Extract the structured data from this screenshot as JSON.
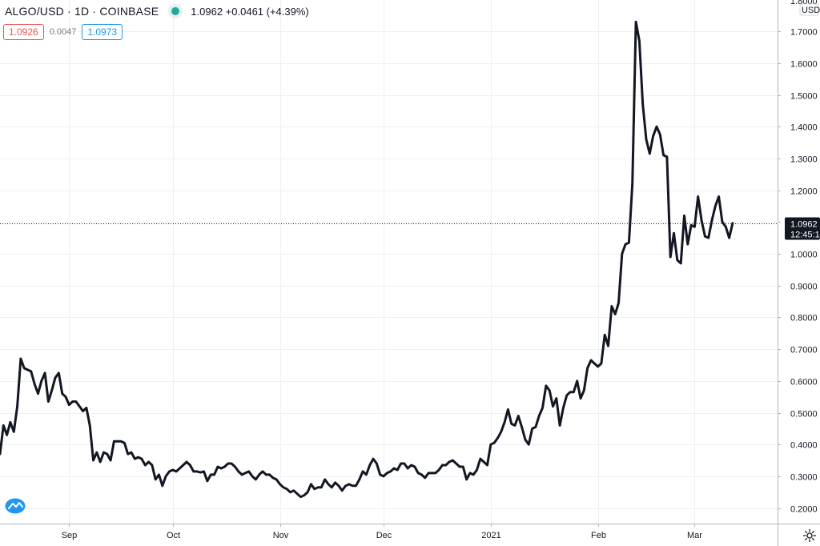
{
  "header": {
    "symbol": "ALGO/USD · 1D · COINBASE",
    "quote": "1.0962 +0.0461 (+4.39%)",
    "status_color": "#26a69a"
  },
  "quote_boxes": {
    "bid": "1.0926",
    "spread": "0.0047",
    "ask": "1.0973"
  },
  "price_axis": {
    "unit_label": "USD",
    "top_partial_label": "1.8000",
    "last_price_label": "1.0962",
    "countdown_label": "12:45:1"
  },
  "icons": {
    "logo": "tradingview-logo-icon",
    "settings": "gear-icon"
  },
  "chart_data": {
    "type": "line",
    "title": "ALGO/USD",
    "xlabel": "",
    "ylabel": "",
    "ylim": [
      0.15,
      1.8
    ],
    "yticks": [
      0.2,
      0.3,
      0.4,
      0.5,
      0.6,
      0.7,
      0.8,
      0.9,
      1.0,
      1.1,
      1.2,
      1.3,
      1.4,
      1.5,
      1.6,
      1.7
    ],
    "ytick_labels": [
      "0.2000",
      "0.3000",
      "0.4000",
      "0.5000",
      "0.6000",
      "0.7000",
      "0.8000",
      "0.9000",
      "1.0000",
      "1.1000",
      "1.2000",
      "1.3000",
      "1.4000",
      "1.5000",
      "1.6000",
      "1.7000"
    ],
    "xticks": [
      {
        "label": "Sep",
        "date": "2020-09-01"
      },
      {
        "label": "Oct",
        "date": "2020-10-01"
      },
      {
        "label": "Nov",
        "date": "2020-11-01"
      },
      {
        "label": "Dec",
        "date": "2020-12-01"
      },
      {
        "label": "2021",
        "date": "2021-01-01"
      },
      {
        "label": "Feb",
        "date": "2021-02-01"
      },
      {
        "label": "Mar",
        "date": "2021-03-01"
      }
    ],
    "x_start": "2020-08-12",
    "x_end": "2021-03-25",
    "last_price": 1.0962,
    "grid": true,
    "line_color": "#131722",
    "series": [
      {
        "values": [
          [
            "2020-08-12",
            0.37
          ],
          [
            "2020-08-13",
            0.46
          ],
          [
            "2020-08-14",
            0.43
          ],
          [
            "2020-08-15",
            0.47
          ],
          [
            "2020-08-16",
            0.44
          ],
          [
            "2020-08-17",
            0.52
          ],
          [
            "2020-08-18",
            0.67
          ],
          [
            "2020-08-19",
            0.64
          ],
          [
            "2020-08-20",
            0.635
          ],
          [
            "2020-08-21",
            0.63
          ],
          [
            "2020-08-22",
            0.59
          ],
          [
            "2020-08-23",
            0.56
          ],
          [
            "2020-08-24",
            0.6
          ],
          [
            "2020-08-25",
            0.625
          ],
          [
            "2020-08-26",
            0.535
          ],
          [
            "2020-08-27",
            0.57
          ],
          [
            "2020-08-28",
            0.61
          ],
          [
            "2020-08-29",
            0.625
          ],
          [
            "2020-08-30",
            0.56
          ],
          [
            "2020-08-31",
            0.55
          ],
          [
            "2020-09-01",
            0.525
          ],
          [
            "2020-09-02",
            0.535
          ],
          [
            "2020-09-03",
            0.535
          ],
          [
            "2020-09-04",
            0.52
          ],
          [
            "2020-09-05",
            0.505
          ],
          [
            "2020-09-06",
            0.515
          ],
          [
            "2020-09-07",
            0.46
          ],
          [
            "2020-09-08",
            0.35
          ],
          [
            "2020-09-09",
            0.375
          ],
          [
            "2020-09-10",
            0.345
          ],
          [
            "2020-09-11",
            0.375
          ],
          [
            "2020-09-12",
            0.37
          ],
          [
            "2020-09-13",
            0.35
          ],
          [
            "2020-09-14",
            0.41
          ],
          [
            "2020-09-15",
            0.41
          ],
          [
            "2020-09-16",
            0.41
          ],
          [
            "2020-09-17",
            0.405
          ],
          [
            "2020-09-18",
            0.37
          ],
          [
            "2020-09-19",
            0.375
          ],
          [
            "2020-09-20",
            0.355
          ],
          [
            "2020-09-21",
            0.36
          ],
          [
            "2020-09-22",
            0.355
          ],
          [
            "2020-09-23",
            0.335
          ],
          [
            "2020-09-24",
            0.345
          ],
          [
            "2020-09-25",
            0.335
          ],
          [
            "2020-09-26",
            0.29
          ],
          [
            "2020-09-27",
            0.305
          ],
          [
            "2020-09-28",
            0.27
          ],
          [
            "2020-09-29",
            0.3
          ],
          [
            "2020-09-30",
            0.315
          ],
          [
            "2020-10-01",
            0.32
          ],
          [
            "2020-10-02",
            0.315
          ],
          [
            "2020-10-03",
            0.325
          ],
          [
            "2020-10-04",
            0.335
          ],
          [
            "2020-10-05",
            0.345
          ],
          [
            "2020-10-06",
            0.335
          ],
          [
            "2020-10-07",
            0.315
          ],
          [
            "2020-10-08",
            0.315
          ],
          [
            "2020-10-09",
            0.312
          ],
          [
            "2020-10-10",
            0.315
          ],
          [
            "2020-10-11",
            0.285
          ],
          [
            "2020-10-12",
            0.305
          ],
          [
            "2020-10-13",
            0.305
          ],
          [
            "2020-10-14",
            0.33
          ],
          [
            "2020-10-15",
            0.325
          ],
          [
            "2020-10-16",
            0.33
          ],
          [
            "2020-10-17",
            0.34
          ],
          [
            "2020-10-18",
            0.34
          ],
          [
            "2020-10-19",
            0.33
          ],
          [
            "2020-10-20",
            0.315
          ],
          [
            "2020-10-21",
            0.305
          ],
          [
            "2020-10-22",
            0.31
          ],
          [
            "2020-10-23",
            0.315
          ],
          [
            "2020-10-24",
            0.3
          ],
          [
            "2020-10-25",
            0.29
          ],
          [
            "2020-10-26",
            0.305
          ],
          [
            "2020-10-27",
            0.315
          ],
          [
            "2020-10-28",
            0.305
          ],
          [
            "2020-10-29",
            0.305
          ],
          [
            "2020-10-30",
            0.295
          ],
          [
            "2020-10-31",
            0.29
          ],
          [
            "2020-11-01",
            0.275
          ],
          [
            "2020-11-02",
            0.265
          ],
          [
            "2020-11-03",
            0.26
          ],
          [
            "2020-11-04",
            0.25
          ],
          [
            "2020-11-05",
            0.255
          ],
          [
            "2020-11-06",
            0.245
          ],
          [
            "2020-11-07",
            0.235
          ],
          [
            "2020-11-08",
            0.24
          ],
          [
            "2020-11-09",
            0.25
          ],
          [
            "2020-11-10",
            0.275
          ],
          [
            "2020-11-11",
            0.26
          ],
          [
            "2020-11-12",
            0.265
          ],
          [
            "2020-11-13",
            0.265
          ],
          [
            "2020-11-14",
            0.29
          ],
          [
            "2020-11-15",
            0.275
          ],
          [
            "2020-11-16",
            0.265
          ],
          [
            "2020-11-17",
            0.28
          ],
          [
            "2020-11-18",
            0.27
          ],
          [
            "2020-11-19",
            0.255
          ],
          [
            "2020-11-20",
            0.27
          ],
          [
            "2020-11-21",
            0.275
          ],
          [
            "2020-11-22",
            0.27
          ],
          [
            "2020-11-23",
            0.27
          ],
          [
            "2020-11-24",
            0.29
          ],
          [
            "2020-11-25",
            0.315
          ],
          [
            "2020-11-26",
            0.305
          ],
          [
            "2020-11-27",
            0.335
          ],
          [
            "2020-11-28",
            0.355
          ],
          [
            "2020-11-29",
            0.34
          ],
          [
            "2020-11-30",
            0.305
          ],
          [
            "2020-12-01",
            0.3
          ],
          [
            "2020-12-02",
            0.31
          ],
          [
            "2020-12-03",
            0.315
          ],
          [
            "2020-12-04",
            0.325
          ],
          [
            "2020-12-05",
            0.32
          ],
          [
            "2020-12-06",
            0.34
          ],
          [
            "2020-12-07",
            0.34
          ],
          [
            "2020-12-08",
            0.325
          ],
          [
            "2020-12-09",
            0.335
          ],
          [
            "2020-12-10",
            0.33
          ],
          [
            "2020-12-11",
            0.31
          ],
          [
            "2020-12-12",
            0.305
          ],
          [
            "2020-12-13",
            0.295
          ],
          [
            "2020-12-14",
            0.31
          ],
          [
            "2020-12-15",
            0.31
          ],
          [
            "2020-12-16",
            0.31
          ],
          [
            "2020-12-17",
            0.32
          ],
          [
            "2020-12-18",
            0.335
          ],
          [
            "2020-12-19",
            0.335
          ],
          [
            "2020-12-20",
            0.345
          ],
          [
            "2020-12-21",
            0.35
          ],
          [
            "2020-12-22",
            0.34
          ],
          [
            "2020-12-23",
            0.33
          ],
          [
            "2020-12-24",
            0.33
          ],
          [
            "2020-12-25",
            0.29
          ],
          [
            "2020-12-26",
            0.31
          ],
          [
            "2020-12-27",
            0.305
          ],
          [
            "2020-12-28",
            0.32
          ],
          [
            "2020-12-29",
            0.355
          ],
          [
            "2020-12-30",
            0.345
          ],
          [
            "2020-12-31",
            0.335
          ],
          [
            "2021-01-01",
            0.4
          ],
          [
            "2021-01-02",
            0.405
          ],
          [
            "2021-01-03",
            0.42
          ],
          [
            "2021-01-04",
            0.44
          ],
          [
            "2021-01-05",
            0.47
          ],
          [
            "2021-01-06",
            0.51
          ],
          [
            "2021-01-07",
            0.465
          ],
          [
            "2021-01-08",
            0.46
          ],
          [
            "2021-01-09",
            0.49
          ],
          [
            "2021-01-10",
            0.455
          ],
          [
            "2021-01-11",
            0.415
          ],
          [
            "2021-01-12",
            0.4
          ],
          [
            "2021-01-13",
            0.45
          ],
          [
            "2021-01-14",
            0.455
          ],
          [
            "2021-01-15",
            0.49
          ],
          [
            "2021-01-16",
            0.515
          ],
          [
            "2021-01-17",
            0.585
          ],
          [
            "2021-01-18",
            0.57
          ],
          [
            "2021-01-19",
            0.52
          ],
          [
            "2021-01-20",
            0.545
          ],
          [
            "2021-01-21",
            0.46
          ],
          [
            "2021-01-22",
            0.515
          ],
          [
            "2021-01-23",
            0.555
          ],
          [
            "2021-01-24",
            0.565
          ],
          [
            "2021-01-25",
            0.565
          ],
          [
            "2021-01-26",
            0.6
          ],
          [
            "2021-01-27",
            0.545
          ],
          [
            "2021-01-28",
            0.57
          ],
          [
            "2021-01-29",
            0.64
          ],
          [
            "2021-01-30",
            0.665
          ],
          [
            "2021-01-31",
            0.655
          ],
          [
            "2021-02-01",
            0.645
          ],
          [
            "2021-02-02",
            0.655
          ],
          [
            "2021-02-03",
            0.745
          ],
          [
            "2021-02-04",
            0.71
          ],
          [
            "2021-02-05",
            0.835
          ],
          [
            "2021-02-06",
            0.81
          ],
          [
            "2021-02-07",
            0.845
          ],
          [
            "2021-02-08",
            1.0
          ],
          [
            "2021-02-09",
            1.03
          ],
          [
            "2021-02-10",
            1.035
          ],
          [
            "2021-02-11",
            1.22
          ],
          [
            "2021-02-12",
            1.73
          ],
          [
            "2021-02-13",
            1.67
          ],
          [
            "2021-02-14",
            1.47
          ],
          [
            "2021-02-15",
            1.36
          ],
          [
            "2021-02-16",
            1.315
          ],
          [
            "2021-02-17",
            1.37
          ],
          [
            "2021-02-18",
            1.4
          ],
          [
            "2021-02-19",
            1.375
          ],
          [
            "2021-02-20",
            1.31
          ],
          [
            "2021-02-21",
            1.305
          ],
          [
            "2021-02-22",
            0.99
          ],
          [
            "2021-02-23",
            1.065
          ],
          [
            "2021-02-24",
            0.98
          ],
          [
            "2021-02-25",
            0.97
          ],
          [
            "2021-02-26",
            1.12
          ],
          [
            "2021-02-27",
            1.03
          ],
          [
            "2021-02-28",
            1.09
          ],
          [
            "2021-03-01",
            1.085
          ],
          [
            "2021-03-02",
            1.18
          ],
          [
            "2021-03-03",
            1.105
          ],
          [
            "2021-03-04",
            1.055
          ],
          [
            "2021-03-05",
            1.05
          ],
          [
            "2021-03-06",
            1.105
          ],
          [
            "2021-03-07",
            1.15
          ],
          [
            "2021-03-08",
            1.18
          ],
          [
            "2021-03-09",
            1.1
          ],
          [
            "2021-03-10",
            1.085
          ],
          [
            "2021-03-11",
            1.05
          ],
          [
            "2021-03-12",
            1.0962
          ]
        ]
      }
    ]
  }
}
